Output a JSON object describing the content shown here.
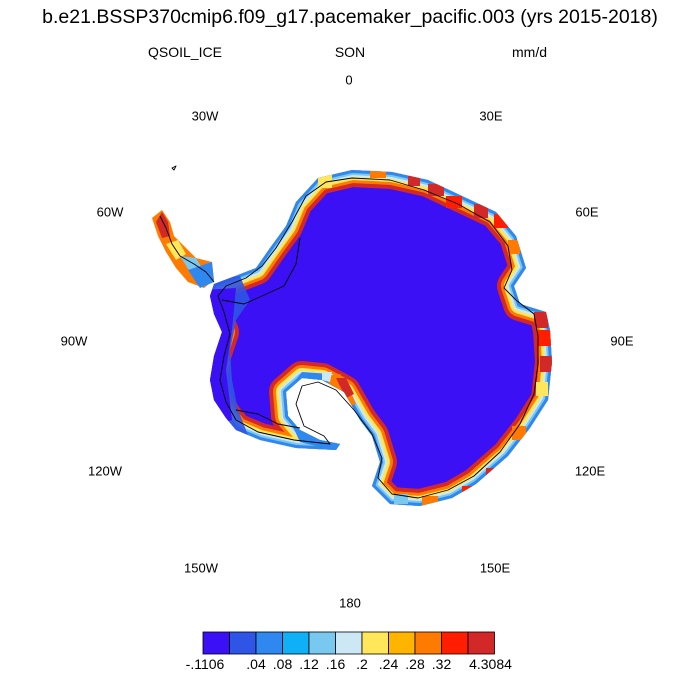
{
  "title": "b.e21.BSSP370cmip6.f09_g17.pacemaker_pacific.003 (yrs 2015-2018)",
  "subtitle": {
    "left": "QSOIL_ICE",
    "center": "SON",
    "right": "mm/d"
  },
  "longitude_labels": {
    "lon_0": "0",
    "lon_30e": "30E",
    "lon_60e": "60E",
    "lon_90e": "90E",
    "lon_120e": "120E",
    "lon_150e": "150E",
    "lon_180": "180",
    "lon_150w": "150W",
    "lon_120w": "120W",
    "lon_90w": "90W",
    "lon_60w": "60W",
    "lon_30w": "30W"
  },
  "colorbar": {
    "colors": [
      "#3b10f5",
      "#2f55e6",
      "#2f87f0",
      "#0fb0f5",
      "#78c8f0",
      "#cde8f5",
      "#ffe65a",
      "#ffb400",
      "#ff7a00",
      "#ff1e00",
      "#d22828"
    ],
    "labels": [
      "-.1106",
      ".04",
      ".08",
      ".12",
      ".16",
      ".2",
      ".24",
      ".28",
      ".32",
      "4.3084"
    ]
  },
  "map_colors": {
    "interior": "#3b10f5",
    "coast_outline": "#000000"
  }
}
